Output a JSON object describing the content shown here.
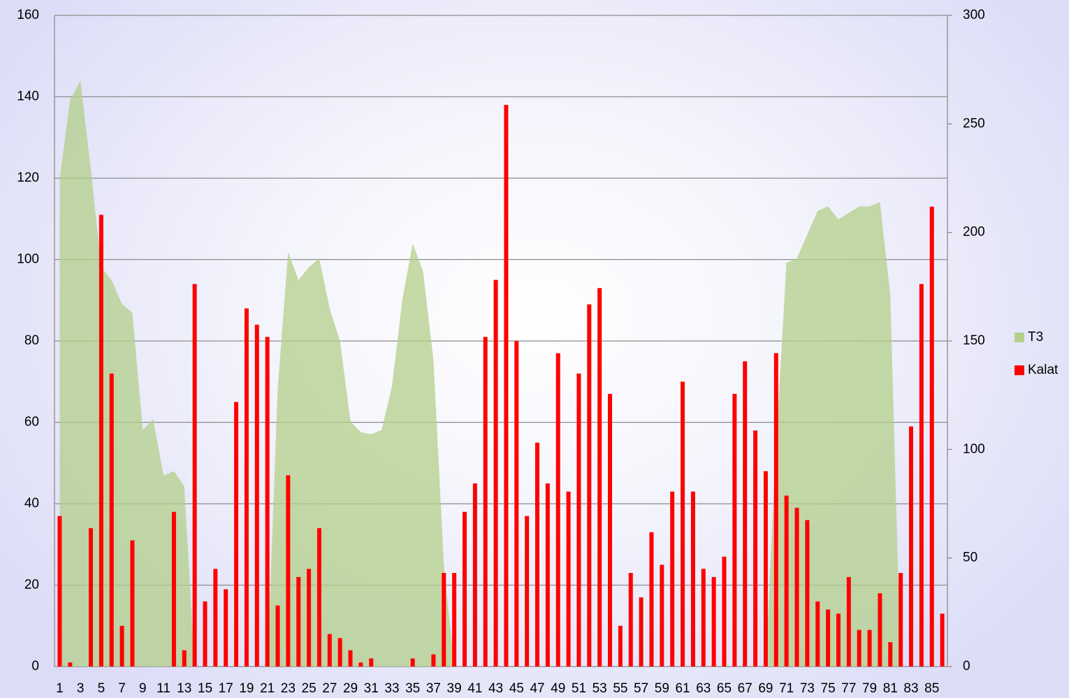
{
  "chart_data": {
    "type": "bar",
    "categories": [
      1,
      null,
      3,
      null,
      5,
      null,
      7,
      null,
      9,
      null,
      11,
      null,
      13,
      null,
      15,
      null,
      17,
      null,
      19,
      null,
      21,
      null,
      23,
      null,
      25,
      null,
      27,
      null,
      29,
      null,
      31,
      null,
      33,
      null,
      35,
      null,
      37,
      null,
      39,
      null,
      41,
      null,
      43,
      null,
      45,
      null,
      47,
      null,
      49,
      null,
      51,
      null,
      53,
      null,
      55,
      null,
      57,
      null,
      59,
      null,
      61,
      null,
      63,
      null,
      65,
      null,
      67,
      null,
      69,
      null,
      71,
      null,
      73,
      null,
      75,
      null,
      77,
      null,
      79,
      null,
      81,
      null,
      83,
      null,
      85,
      null
    ],
    "series": [
      {
        "name": "T3",
        "type": "area",
        "axis": "y2",
        "color": "#b3cf8a",
        "values": [
          225,
          261,
          270,
          229,
          184,
          178,
          167,
          163,
          109,
          114,
          88,
          90,
          83,
          0,
          0,
          0,
          0,
          0,
          0,
          0,
          0,
          128,
          191,
          178,
          184,
          188,
          165,
          150,
          113,
          108,
          107,
          109,
          129,
          169,
          195,
          182,
          141,
          47,
          0,
          0,
          0,
          0,
          0,
          0,
          0,
          0,
          0,
          0,
          0,
          0,
          0,
          0,
          0,
          0,
          0,
          0,
          0,
          0,
          0,
          0,
          0,
          0,
          0,
          0,
          0,
          0,
          0,
          0,
          0,
          103,
          186,
          188,
          199,
          210,
          212,
          206,
          209,
          212,
          212,
          214,
          171,
          0,
          0,
          0,
          0,
          0
        ]
      },
      {
        "name": "Kalat",
        "type": "bar",
        "color": "#ff0000",
        "values": [
          37,
          1,
          0,
          34,
          111,
          72,
          10,
          31,
          0,
          0,
          0,
          38,
          4,
          94,
          16,
          24,
          19,
          65,
          88,
          84,
          81,
          15,
          47,
          22,
          24,
          34,
          8,
          7,
          4,
          1,
          2,
          0,
          0,
          0,
          2,
          0,
          3,
          23,
          23,
          38,
          45,
          81,
          95,
          138,
          80,
          37,
          55,
          45,
          77,
          43,
          72,
          89,
          93,
          67,
          10,
          23,
          17,
          33,
          25,
          43,
          70,
          43,
          24,
          22,
          27,
          67,
          75,
          58,
          48,
          77,
          42,
          39,
          36,
          16,
          14,
          13,
          22,
          9,
          9,
          18,
          6,
          23,
          59,
          94,
          113,
          13
        ]
      }
    ],
    "ylim": [
      0,
      160
    ],
    "yticks": [
      0,
      20,
      40,
      60,
      80,
      100,
      120,
      140,
      160
    ],
    "y2lim": [
      0,
      300
    ],
    "y2ticks": [
      0,
      50,
      100,
      150,
      200,
      250,
      300
    ],
    "grid": true,
    "legend": "right"
  }
}
